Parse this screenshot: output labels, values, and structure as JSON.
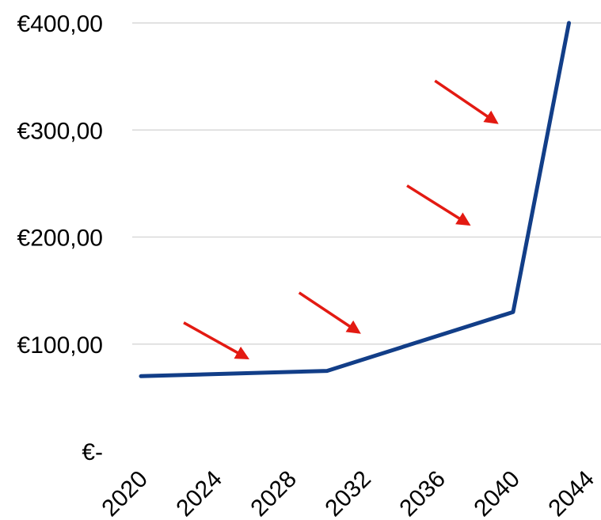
{
  "chart_data": {
    "type": "line",
    "title": "",
    "xlabel": "",
    "ylabel": "",
    "x_tick_labels": [
      "2020",
      "2024",
      "2028",
      "2032",
      "2036",
      "2040",
      "2044"
    ],
    "y_tick_values": [
      0,
      100,
      200,
      300,
      400
    ],
    "y_tick_labels": [
      "€-",
      "€100,00",
      "€200,00",
      "€300,00",
      "€400,00"
    ],
    "xlim": [
      2020,
      2044
    ],
    "ylim": [
      0,
      400
    ],
    "grid": true,
    "legend": "none",
    "series": [
      {
        "x": [
          2020,
          2030,
          2040,
          2043
        ],
        "values": [
          70,
          75,
          130,
          400
        ]
      }
    ],
    "annotations": {
      "arrows": [
        {
          "from": [
            2022.3,
            120
          ],
          "to": [
            2025.7,
            87
          ]
        },
        {
          "from": [
            2028.5,
            148
          ],
          "to": [
            2031.7,
            111
          ]
        },
        {
          "from": [
            2034.3,
            248
          ],
          "to": [
            2037.6,
            212
          ]
        },
        {
          "from": [
            2035.8,
            346
          ],
          "to": [
            2039.1,
            307
          ]
        }
      ]
    },
    "colors": {
      "line": "#123e88",
      "arrow": "#e31a12",
      "grid": "#d9d9d9",
      "text": "#000000"
    }
  }
}
